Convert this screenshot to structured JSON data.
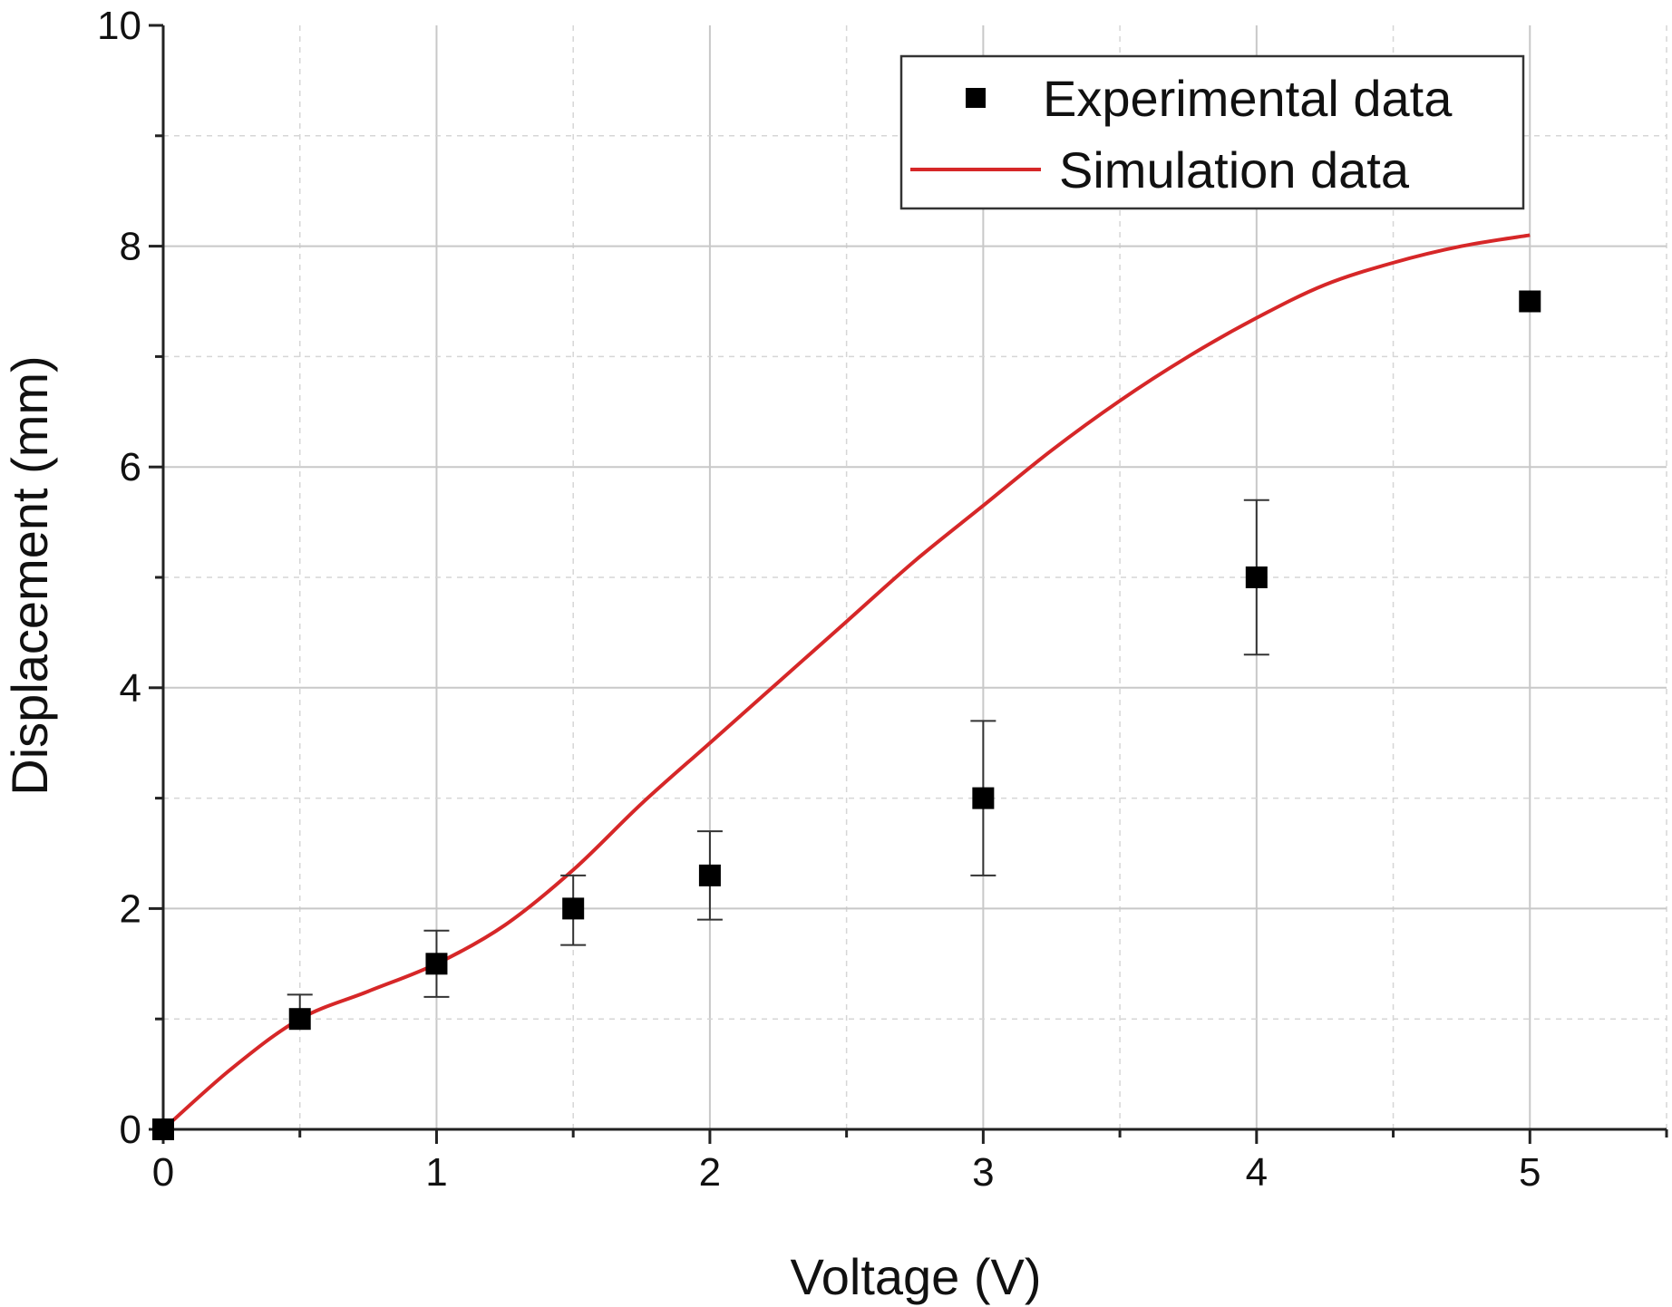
{
  "chart_data": {
    "type": "scatter",
    "title": "",
    "xlabel": "Voltage (V)",
    "ylabel": "Displacement (mm)",
    "xlim": [
      0,
      5.5
    ],
    "ylim": [
      0,
      10
    ],
    "x_ticks": [
      0,
      1,
      2,
      3,
      4,
      5
    ],
    "x_tick_labels": [
      "0",
      "1",
      "2",
      "3",
      "4",
      "5"
    ],
    "y_ticks": [
      0,
      2,
      4,
      6,
      8,
      10
    ],
    "y_tick_labels": [
      "0",
      "2",
      "4",
      "6",
      "8",
      "10"
    ],
    "grid": true,
    "legend_position": "top-right",
    "series": [
      {
        "name": "Experimental data",
        "kind": "scatter",
        "marker": "square",
        "color": "#000000",
        "x": [
          0,
          0.5,
          1,
          1.5,
          2,
          3,
          4,
          5
        ],
        "y": [
          0,
          1.0,
          1.5,
          2.0,
          2.3,
          3.0,
          5.0,
          7.5
        ],
        "err_low": [
          0,
          0,
          0.3,
          0.33,
          0.4,
          0.7,
          0.7,
          0
        ],
        "err_high": [
          0,
          0.22,
          0.3,
          0.3,
          0.4,
          0.7,
          0.7,
          0
        ]
      },
      {
        "name": "Simulation data",
        "kind": "line",
        "color": "#d62728",
        "x": [
          0,
          0.25,
          0.5,
          0.75,
          1.0,
          1.25,
          1.5,
          1.75,
          2.0,
          2.25,
          2.5,
          2.75,
          3.0,
          3.25,
          3.5,
          3.75,
          4.0,
          4.25,
          4.5,
          4.75,
          5.0
        ],
        "y": [
          0,
          0.55,
          1.0,
          1.25,
          1.5,
          1.85,
          2.35,
          2.95,
          3.5,
          4.05,
          4.6,
          5.15,
          5.65,
          6.15,
          6.6,
          7.0,
          7.35,
          7.65,
          7.85,
          8.0,
          8.1
        ]
      }
    ]
  }
}
